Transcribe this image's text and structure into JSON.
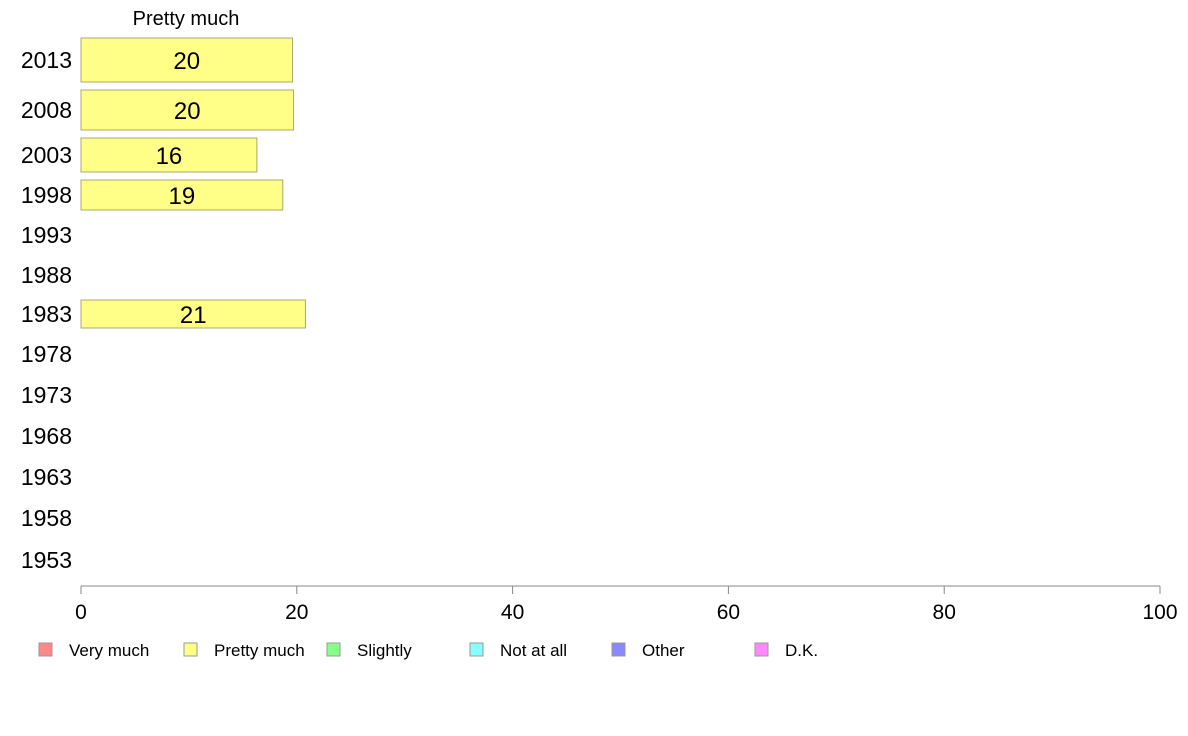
{
  "chart_data": {
    "type": "bar",
    "orientation": "horizontal",
    "panel_title": "Pretty much",
    "categories": [
      "2013",
      "2008",
      "2003",
      "1998",
      "1993",
      "1988",
      "1983",
      "1978",
      "1973",
      "1968",
      "1963",
      "1958",
      "1953"
    ],
    "series": [
      {
        "name": "Pretty much",
        "color": "#ffff88",
        "values": [
          19.6,
          19.7,
          16.3,
          18.7,
          null,
          null,
          20.8,
          null,
          null,
          null,
          null,
          null,
          null
        ],
        "labels": [
          "20",
          "20",
          "16",
          "19",
          "",
          "",
          "21",
          "",
          "",
          "",
          "",
          "",
          ""
        ]
      }
    ],
    "xlim": [
      0,
      100
    ],
    "xticks": [
      "0",
      "20",
      "40",
      "60",
      "80",
      "100"
    ],
    "grid": false,
    "legend_position": "bottom",
    "legend": [
      {
        "label": "Very much",
        "color": "#ff8888"
      },
      {
        "label": "Pretty much",
        "color": "#ffff88"
      },
      {
        "label": "Slightly",
        "color": "#88ff88"
      },
      {
        "label": "Not at all",
        "color": "#88ffff"
      },
      {
        "label": "Other",
        "color": "#8888ff"
      },
      {
        "label": "D.K.",
        "color": "#ff88ff"
      }
    ]
  }
}
